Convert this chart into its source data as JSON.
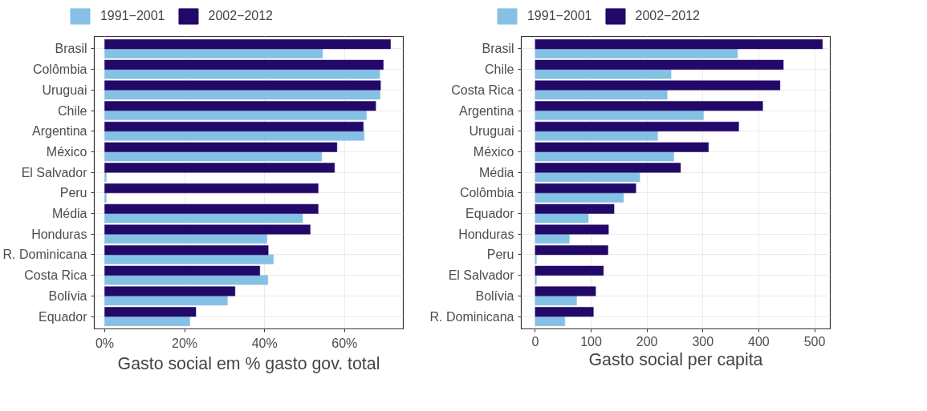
{
  "chart_data": [
    {
      "type": "bar",
      "orientation": "horizontal",
      "xlabel": "Gasto social em % gasto gov. total",
      "categories": [
        "Brasil",
        "Colômbia",
        "Uruguai",
        "Chile",
        "Argentina",
        "México",
        "El Salvador",
        "Peru",
        "Média",
        "Honduras",
        "R. Dominicana",
        "Costa Rica",
        "Bolívia",
        "Equador"
      ],
      "series": [
        {
          "name": "1991−2001",
          "color": "#85c1e5",
          "values": [
            54.5,
            68.8,
            68.9,
            65.5,
            64.9,
            54.3,
            0.4,
            0.4,
            49.5,
            40.6,
            42.2,
            40.8,
            30.7,
            21.3
          ]
        },
        {
          "name": "2002−2012",
          "color": "#220868",
          "values": [
            71.5,
            69.7,
            69.0,
            67.8,
            64.7,
            58.1,
            57.5,
            53.4,
            53.4,
            51.4,
            40.9,
            38.8,
            32.6,
            22.8
          ]
        }
      ],
      "xlim": [
        -2.6,
        74.7
      ],
      "xticks": [
        {
          "value": 0,
          "label": "0%"
        },
        {
          "value": 20,
          "label": "20%"
        },
        {
          "value": 40,
          "label": "40%"
        },
        {
          "value": 60,
          "label": "60%"
        }
      ],
      "grid": true,
      "legend": "top"
    },
    {
      "type": "bar",
      "orientation": "horizontal",
      "xlabel": "Gasto social per capita",
      "categories": [
        "Brasil",
        "Chile",
        "Costa Rica",
        "Argentina",
        "Uruguai",
        "México",
        "Média",
        "Colômbia",
        "Equador",
        "Honduras",
        "Peru",
        "El Salvador",
        "Bolívia",
        "R. Dominicana"
      ],
      "series": [
        {
          "name": "1991−2001",
          "color": "#85c1e5",
          "values": [
            362,
            243,
            236,
            301,
            219,
            248,
            187,
            158,
            95,
            61,
            2,
            2,
            74,
            53
          ]
        },
        {
          "name": "2002−2012",
          "color": "#220868",
          "values": [
            514,
            444,
            438,
            407,
            364,
            310,
            260,
            180,
            141,
            131,
            130,
            122,
            108,
            104
          ]
        }
      ],
      "xlim": [
        -25,
        528
      ],
      "xticks": [
        0,
        100,
        200,
        300,
        400,
        500
      ],
      "grid": true,
      "legend": "top"
    }
  ]
}
